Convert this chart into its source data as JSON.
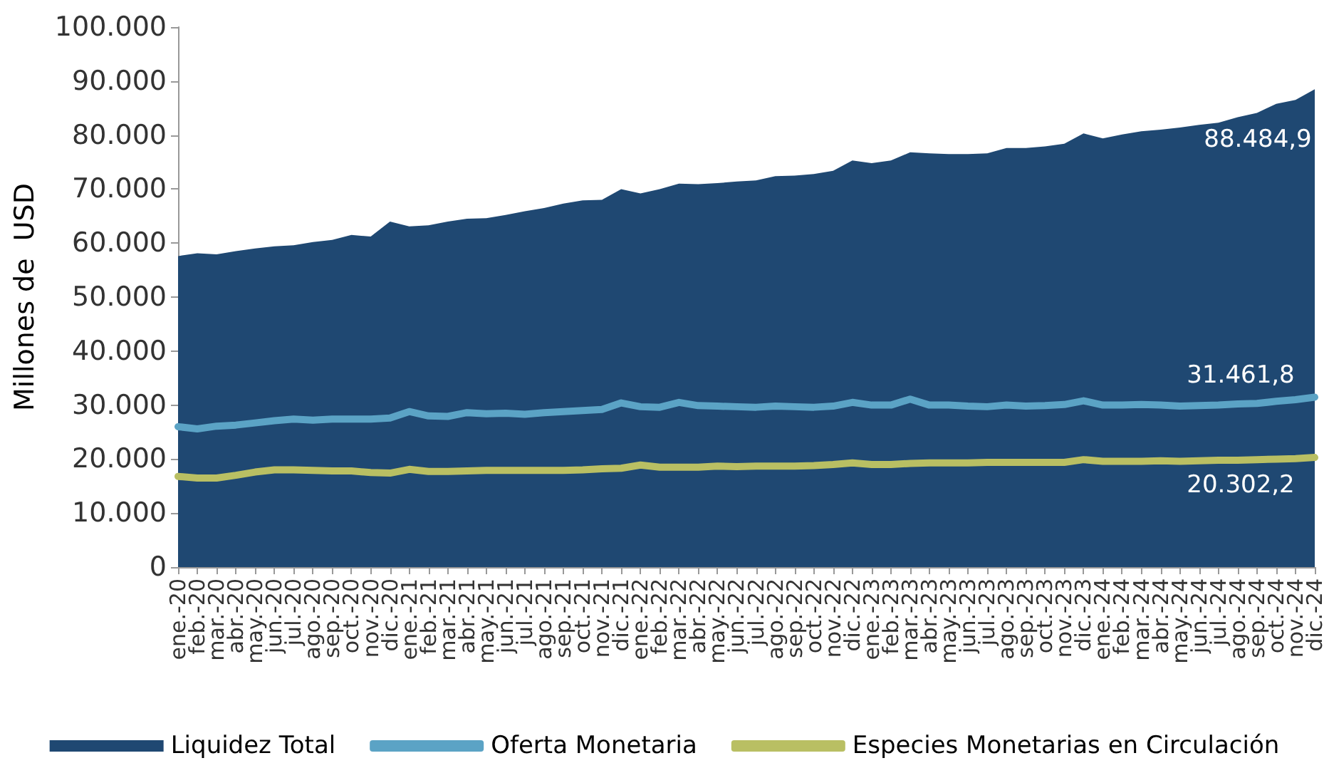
{
  "chart_data": {
    "type": "area",
    "ylabel": "Millones de  USD",
    "categories": [
      "ene.-20",
      "feb.-20",
      "mar.-20",
      "abr.-20",
      "may.-20",
      "jun.-20",
      "jul.-20",
      "ago.-20",
      "sep.-20",
      "oct.-20",
      "nov.-20",
      "dic.-20",
      "ene.-21",
      "feb.-21",
      "mar.-21",
      "abr.-21",
      "may.-21",
      "jun.-21",
      "jul.-21",
      "ago.-21",
      "sep.-21",
      "oct.-21",
      "nov.-21",
      "dic.-21",
      "ene.-22",
      "feb.-22",
      "mar.-22",
      "abr.-22",
      "may.-22",
      "jun.-22",
      "jul.-22",
      "ago.-22",
      "sep.-22",
      "oct.-22",
      "nov.-22",
      "dic.-22",
      "ene.-23",
      "feb.-23",
      "mar.-23",
      "abr.-23",
      "may.-23",
      "jun.-23",
      "jul.-23",
      "ago.-23",
      "sep.-23",
      "oct.-23",
      "nov.-23",
      "dic.-23",
      "ene.-24",
      "feb.-24",
      "mar.-24",
      "abr.-24",
      "may.-24",
      "jun.-24",
      "jul.-24",
      "ago.-24",
      "sep.-24",
      "oct.-24",
      "nov.-24",
      "dic.-24"
    ],
    "series": [
      {
        "name": "Liquidez Total",
        "color": "#1f4872",
        "values": [
          57600,
          58100,
          57900,
          58500,
          59000,
          59400,
          59600,
          60200,
          60600,
          61500,
          61200,
          64000,
          63100,
          63300,
          64000,
          64500,
          64600,
          65200,
          65900,
          66500,
          67300,
          67900,
          68000,
          70000,
          69200,
          70000,
          71000,
          70900,
          71100,
          71400,
          71600,
          72400,
          72500,
          72800,
          73400,
          75300,
          74800,
          75300,
          76800,
          76600,
          76500,
          76500,
          76600,
          77600,
          77600,
          77900,
          78400,
          80300,
          79400,
          80100,
          80700,
          81000,
          81400,
          81900,
          82300,
          83300,
          84100,
          85800,
          86500,
          88484.9
        ],
        "value_labels": [
          null,
          null,
          null,
          null,
          null,
          null,
          null,
          null,
          null,
          null,
          null,
          null,
          null,
          null,
          null,
          null,
          null,
          null,
          null,
          null,
          null,
          null,
          null,
          null,
          null,
          null,
          null,
          null,
          null,
          null,
          null,
          null,
          null,
          null,
          null,
          null,
          null,
          null,
          null,
          null,
          null,
          null,
          null,
          null,
          null,
          null,
          null,
          null,
          null,
          null,
          null,
          null,
          null,
          null,
          null,
          null,
          null,
          null,
          null,
          "88.484,9"
        ]
      },
      {
        "name": "Oferta Monetaria",
        "type": "line",
        "color": "#5ba3c5",
        "values": [
          26000,
          25600,
          26100,
          26300,
          26700,
          27100,
          27400,
          27200,
          27400,
          27400,
          27400,
          27600,
          28800,
          28000,
          27900,
          28600,
          28400,
          28500,
          28300,
          28600,
          28800,
          29000,
          29200,
          30400,
          29700,
          29600,
          30500,
          29900,
          29800,
          29700,
          29600,
          29800,
          29700,
          29600,
          29800,
          30500,
          30000,
          30000,
          31100,
          30000,
          30000,
          29800,
          29700,
          30000,
          29800,
          29900,
          30100,
          30800,
          30000,
          30000,
          30100,
          30000,
          29800,
          29900,
          30000,
          30200,
          30300,
          30700,
          31000,
          31461.8
        ],
        "value_labels": [
          null,
          null,
          null,
          null,
          null,
          null,
          null,
          null,
          null,
          null,
          null,
          null,
          null,
          null,
          null,
          null,
          null,
          null,
          null,
          null,
          null,
          null,
          null,
          null,
          null,
          null,
          null,
          null,
          null,
          null,
          null,
          null,
          null,
          null,
          null,
          null,
          null,
          null,
          null,
          null,
          null,
          null,
          null,
          null,
          null,
          null,
          null,
          null,
          null,
          null,
          null,
          null,
          null,
          null,
          null,
          null,
          null,
          null,
          null,
          "31.461,8"
        ]
      },
      {
        "name": "Especies Monetarias en Circulación",
        "type": "line",
        "color": "#b9bf63",
        "values": [
          16800,
          16500,
          16500,
          17000,
          17600,
          18000,
          18000,
          17900,
          17800,
          17800,
          17500,
          17400,
          18100,
          17700,
          17700,
          17800,
          17900,
          17900,
          17900,
          17900,
          17900,
          18000,
          18200,
          18300,
          18900,
          18500,
          18500,
          18500,
          18700,
          18600,
          18700,
          18700,
          18700,
          18800,
          19000,
          19300,
          19000,
          19000,
          19200,
          19300,
          19300,
          19300,
          19400,
          19400,
          19400,
          19400,
          19400,
          19900,
          19600,
          19600,
          19600,
          19700,
          19600,
          19700,
          19800,
          19800,
          19900,
          20000,
          20100,
          20302.2
        ],
        "value_labels": [
          null,
          null,
          null,
          null,
          null,
          null,
          null,
          null,
          null,
          null,
          null,
          null,
          null,
          null,
          null,
          null,
          null,
          null,
          null,
          null,
          null,
          null,
          null,
          null,
          null,
          null,
          null,
          null,
          null,
          null,
          null,
          null,
          null,
          null,
          null,
          null,
          null,
          null,
          null,
          null,
          null,
          null,
          null,
          null,
          null,
          null,
          null,
          null,
          null,
          null,
          null,
          null,
          null,
          null,
          null,
          null,
          null,
          null,
          null,
          "20.302,2"
        ]
      }
    ],
    "ylim": [
      0,
      100000
    ],
    "yticks": [
      {
        "value": 0,
        "label": "0"
      },
      {
        "value": 10000,
        "label": "10.000"
      },
      {
        "value": 20000,
        "label": "20.000"
      },
      {
        "value": 30000,
        "label": "30.000"
      },
      {
        "value": 40000,
        "label": "40.000"
      },
      {
        "value": 50000,
        "label": "50.000"
      },
      {
        "value": 60000,
        "label": "60.000"
      },
      {
        "value": 70000,
        "label": "70.000"
      },
      {
        "value": 80000,
        "label": "80.000"
      },
      {
        "value": 90000,
        "label": "90.000"
      },
      {
        "value": 100000,
        "label": "100.000"
      }
    ],
    "grid": false,
    "legend": "bottom",
    "marker": "none"
  }
}
